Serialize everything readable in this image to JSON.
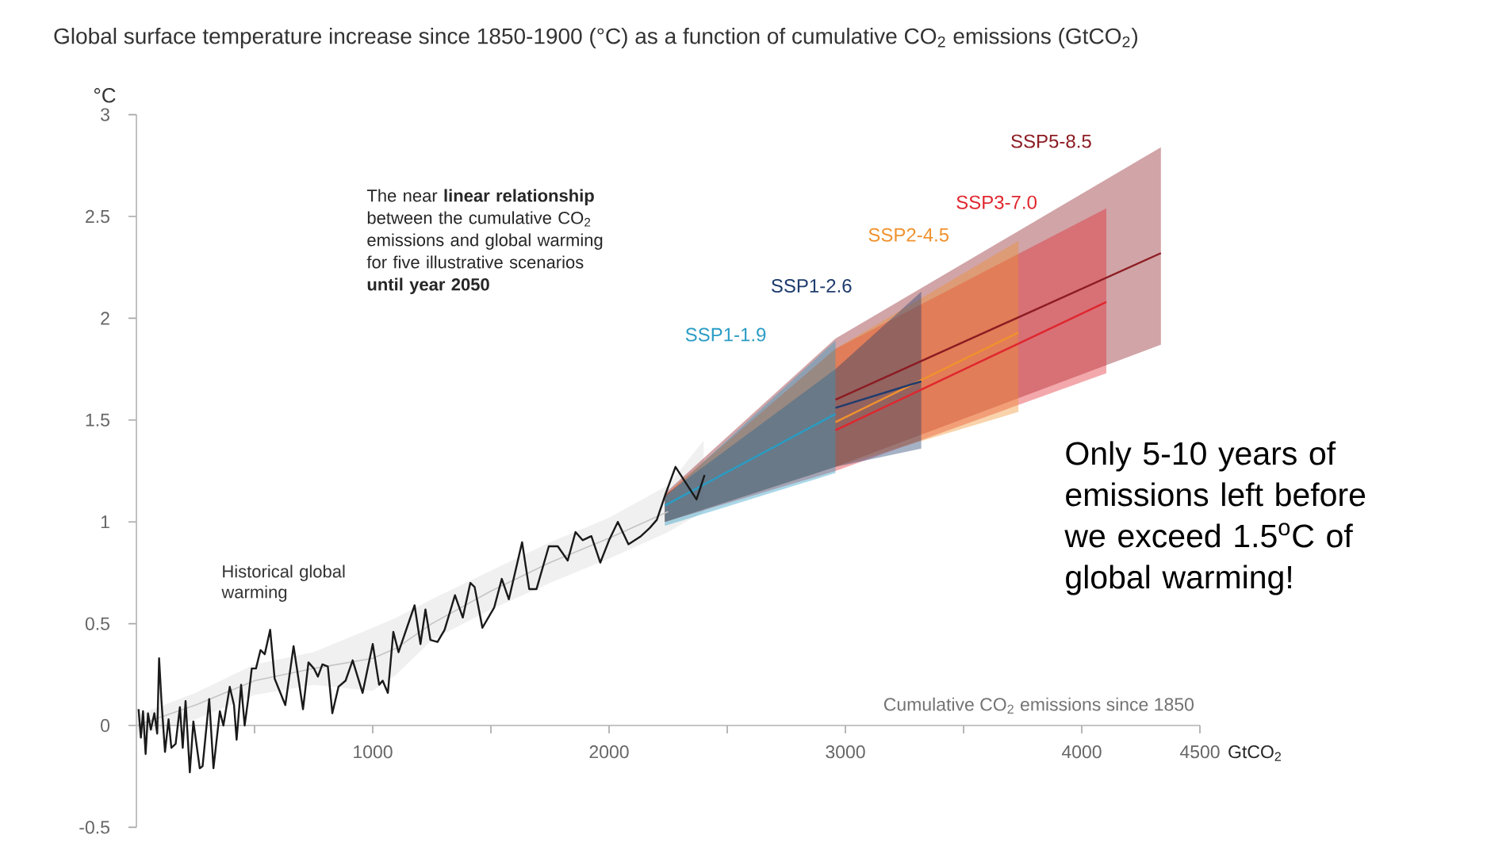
{
  "chart_data": {
    "type": "line",
    "title": "Global surface temperature increase since 1850-1900 (°C) as a function of cumulative CO$_{2}$ emissions (GtCO$_{2}$)",
    "xlabel": "Cumulative CO$_{2}$ emissions since 1850",
    "ylabel": "°C",
    "annotations": [
      "The near **linear relationship** between the cumulative CO$_{2}$ emissions and global warming for five illustrative scenarios **until year 2050**",
      "GtCO$_{2}$",
      "Only 5-10 years of emissions left before we exceed 1.5$^{o}$C of global warming!"
    ],
    "xlim": [
      0,
      4500
    ],
    "xticks": [
      {
        "value": 500,
        "label": null
      },
      1000,
      {
        "value": 1500,
        "label": null
      },
      2000,
      {
        "value": 2500,
        "label": null
      },
      3000,
      {
        "value": 3500,
        "label": null
      },
      4000,
      4500
    ],
    "ylim": [
      -0.5,
      3
    ],
    "yticks": [
      -0.5,
      0,
      0.5,
      1,
      1.5,
      2,
      2.5,
      3
    ],
    "grid": false,
    "marker": "none",
    "line_style": "solid",
    "series": [
      {
        "color": "#c4c4c4",
        "x": [
          0,
          250,
          500,
          750,
          1000,
          1100,
          1250,
          1500,
          1750,
          2000,
          2250,
          2400
        ],
        "values": [
          0,
          0.1,
          0.22,
          0.28,
          0.33,
          0.38,
          0.5,
          0.66,
          0.8,
          0.92,
          1.05,
          null
        ],
        "lower": [
          -0.05,
          0.03,
          0.15,
          0.2,
          0.17,
          0.25,
          0.42,
          0.57,
          0.7,
          0.82,
          0.95,
          1.05
        ],
        "upper": [
          0.05,
          0.16,
          0.3,
          0.36,
          0.48,
          0.53,
          0.62,
          0.76,
          0.9,
          1.02,
          1.18,
          1.4
        ]
      },
      {
        "name": "SSP5-8.5",
        "color": "#8c1c22",
        "x": [
          2236,
          2958,
          4335
        ],
        "values": [
          null,
          1.6,
          2.32
        ],
        "lower": [
          1.0,
          1.27,
          1.87
        ],
        "upper": [
          1.14,
          1.9,
          2.84
        ]
      },
      {
        "name": "SSP3-7.0",
        "color": "#e0262e",
        "x": [
          2236,
          2958,
          4104
        ],
        "values": [
          null,
          1.45,
          2.08
        ],
        "lower": [
          1.0,
          1.25,
          1.73
        ],
        "upper": [
          1.13,
          1.85,
          2.54
        ]
      },
      {
        "name": "SSP2-4.5",
        "color": "#f0922e",
        "x": [
          2236,
          2958,
          3732
        ],
        "values": [
          null,
          1.49,
          1.93
        ],
        "lower": [
          1.0,
          1.27,
          1.54
        ],
        "upper": [
          1.13,
          1.85,
          2.38
        ]
      },
      {
        "name": "SSP1-2.6",
        "color": "#1f3c6e",
        "x": [
          2236,
          2958,
          3321
        ],
        "values": [
          null,
          1.56,
          1.69
        ],
        "lower": [
          1.0,
          1.27,
          1.36
        ],
        "upper": [
          1.13,
          1.75,
          2.13
        ]
      },
      {
        "name": "SSP1-1.9",
        "color": "#2a9cc4",
        "x": [
          2236,
          2958
        ],
        "values": [
          1.08,
          1.53
        ],
        "lower": [
          0.98,
          1.24
        ],
        "upper": [
          1.12,
          1.89
        ]
      },
      {
        "name": "Historical global warming",
        "color": "#1a1a1a",
        "x": [
          9,
          19,
          28,
          39,
          49,
          61,
          76,
          88,
          96,
          106,
          121,
          136,
          148,
          166,
          184,
          196,
          208,
          226,
          241,
          268,
          280,
          308,
          326,
          353,
          368,
          395,
          413,
          424,
          443,
          458,
          473,
          488,
          506,
          525,
          543,
          566,
          585,
          630,
          665,
          705,
          728,
          751,
          768,
          787,
          810,
          829,
          855,
          885,
          915,
          957,
          1000,
          1027,
          1042,
          1064,
          1087,
          1109,
          1177,
          1202,
          1223,
          1244,
          1274,
          1304,
          1348,
          1381,
          1413,
          1431,
          1464,
          1514,
          1546,
          1576,
          1632,
          1662,
          1693,
          1745,
          1783,
          1825,
          1858,
          1888,
          1925,
          1963,
          2000,
          2037,
          2082,
          2135,
          2172,
          2202,
          2240,
          2281,
          2370,
          2404
        ],
        "values": [
          0.08,
          -0.06,
          0.07,
          -0.14,
          0.06,
          -0.02,
          0.06,
          -0.04,
          0.33,
          0.12,
          -0.13,
          0.03,
          -0.11,
          -0.09,
          0.09,
          -0.11,
          0.12,
          -0.23,
          0.02,
          -0.21,
          -0.2,
          0.13,
          -0.21,
          0.07,
          0,
          0.19,
          0.1,
          -0.07,
          0.2,
          0,
          0.13,
          0.28,
          0.28,
          0.37,
          0.35,
          0.47,
          0.23,
          0.1,
          0.39,
          0.08,
          0.31,
          0.28,
          0.24,
          0.3,
          0.29,
          0.06,
          0.19,
          0.22,
          0.32,
          0.16,
          0.4,
          0.2,
          0.22,
          0.16,
          0.46,
          0.36,
          0.59,
          0.4,
          0.57,
          0.42,
          0.41,
          0.47,
          0.64,
          0.53,
          0.7,
          0.68,
          0.48,
          0.58,
          0.72,
          0.62,
          0.9,
          0.67,
          0.67,
          0.88,
          0.88,
          0.81,
          0.95,
          0.91,
          0.93,
          0.8,
          0.91,
          1.0,
          0.89,
          0.93,
          0.97,
          1.01,
          1.14,
          1.27,
          1.11,
          1.23
        ]
      }
    ]
  }
}
